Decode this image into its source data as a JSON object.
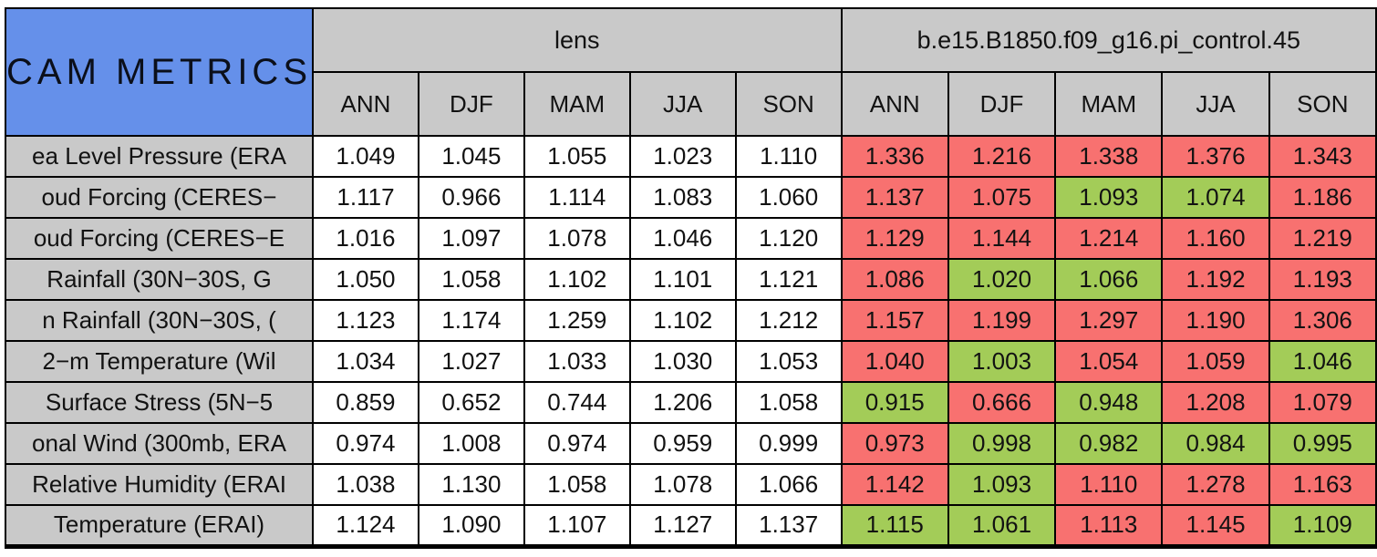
{
  "colors": {
    "title_blue": "#6590ea",
    "header_gray": "#c9c9c9",
    "cell_red": "#f87170",
    "cell_green": "#a3cc58",
    "border_black": "#000000"
  },
  "chart_data": {
    "type": "table",
    "title": "CAM METRICS",
    "column_groups": [
      "lens",
      "b.e15.B1850.f09_g16.pi_control.45"
    ],
    "seasons": [
      "ANN",
      "DJF",
      "MAM",
      "JJA",
      "SON"
    ],
    "cell_color_legend": [
      "red",
      "green"
    ],
    "rows": [
      {
        "label": "ea Level Pressure (ERA",
        "lens": [
          "1.049",
          "1.045",
          "1.055",
          "1.023",
          "1.110"
        ],
        "control": [
          "1.336",
          "1.216",
          "1.338",
          "1.376",
          "1.343"
        ],
        "control_colors": [
          "red",
          "red",
          "red",
          "red",
          "red"
        ]
      },
      {
        "label": "oud Forcing (CERES−",
        "lens": [
          "1.117",
          "0.966",
          "1.114",
          "1.083",
          "1.060"
        ],
        "control": [
          "1.137",
          "1.075",
          "1.093",
          "1.074",
          "1.186"
        ],
        "control_colors": [
          "red",
          "red",
          "green",
          "green",
          "red"
        ]
      },
      {
        "label": "oud Forcing (CERES−E",
        "lens": [
          "1.016",
          "1.097",
          "1.078",
          "1.046",
          "1.120"
        ],
        "control": [
          "1.129",
          "1.144",
          "1.214",
          "1.160",
          "1.219"
        ],
        "control_colors": [
          "red",
          "red",
          "red",
          "red",
          "red"
        ]
      },
      {
        "label": "Rainfall (30N−30S, G",
        "lens": [
          "1.050",
          "1.058",
          "1.102",
          "1.101",
          "1.121"
        ],
        "control": [
          "1.086",
          "1.020",
          "1.066",
          "1.192",
          "1.193"
        ],
        "control_colors": [
          "red",
          "green",
          "green",
          "red",
          "red"
        ]
      },
      {
        "label": "n Rainfall (30N−30S, (",
        "lens": [
          "1.123",
          "1.174",
          "1.259",
          "1.102",
          "1.212"
        ],
        "control": [
          "1.157",
          "1.199",
          "1.297",
          "1.190",
          "1.306"
        ],
        "control_colors": [
          "red",
          "red",
          "red",
          "red",
          "red"
        ]
      },
      {
        "label": "2−m Temperature (Wil",
        "lens": [
          "1.034",
          "1.027",
          "1.033",
          "1.030",
          "1.053"
        ],
        "control": [
          "1.040",
          "1.003",
          "1.054",
          "1.059",
          "1.046"
        ],
        "control_colors": [
          "red",
          "green",
          "red",
          "red",
          "green"
        ]
      },
      {
        "label": "Surface Stress (5N−5",
        "lens": [
          "0.859",
          "0.652",
          "0.744",
          "1.206",
          "1.058"
        ],
        "control": [
          "0.915",
          "0.666",
          "0.948",
          "1.208",
          "1.079"
        ],
        "control_colors": [
          "green",
          "red",
          "green",
          "red",
          "red"
        ]
      },
      {
        "label": "onal Wind (300mb, ERA",
        "lens": [
          "0.974",
          "1.008",
          "0.974",
          "0.959",
          "0.999"
        ],
        "control": [
          "0.973",
          "0.998",
          "0.982",
          "0.984",
          "0.995"
        ],
        "control_colors": [
          "red",
          "green",
          "green",
          "green",
          "green"
        ]
      },
      {
        "label": "Relative Humidity (ERAI",
        "lens": [
          "1.038",
          "1.130",
          "1.058",
          "1.078",
          "1.066"
        ],
        "control": [
          "1.142",
          "1.093",
          "1.110",
          "1.278",
          "1.163"
        ],
        "control_colors": [
          "red",
          "green",
          "red",
          "red",
          "red"
        ]
      },
      {
        "label": "Temperature (ERAI)",
        "lens": [
          "1.124",
          "1.090",
          "1.107",
          "1.127",
          "1.137"
        ],
        "control": [
          "1.115",
          "1.061",
          "1.113",
          "1.145",
          "1.109"
        ],
        "control_colors": [
          "green",
          "green",
          "red",
          "red",
          "green"
        ]
      }
    ]
  }
}
